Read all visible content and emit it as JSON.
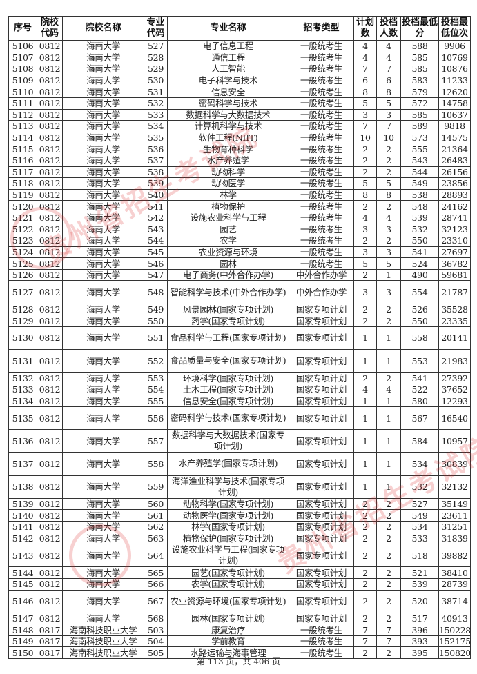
{
  "table": {
    "headers": [
      "序号",
      "院校代码",
      "院校名称",
      "专业代码",
      "专业名称",
      "招考类型",
      "计划数",
      "投档人数",
      "投档最低分",
      "投档最低位次"
    ],
    "rows": [
      [
        "5106",
        "0812",
        "海南大学",
        "527",
        "电子信息工程",
        "一般统考生",
        "4",
        "4",
        "588",
        "9906"
      ],
      [
        "5107",
        "0812",
        "海南大学",
        "528",
        "通信工程",
        "一般统考生",
        "4",
        "4",
        "585",
        "10769"
      ],
      [
        "5108",
        "0812",
        "海南大学",
        "529",
        "人工智能",
        "一般统考生",
        "7",
        "7",
        "585",
        "10876"
      ],
      [
        "5109",
        "0812",
        "海南大学",
        "530",
        "电子科学与技术",
        "一般统考生",
        "6",
        "6",
        "583",
        "11233"
      ],
      [
        "5110",
        "0812",
        "海南大学",
        "531",
        "信息安全",
        "一般统考生",
        "8",
        "8",
        "579",
        "12620"
      ],
      [
        "5111",
        "0812",
        "海南大学",
        "532",
        "密码科学与技术",
        "一般统考生",
        "5",
        "5",
        "572",
        "14758"
      ],
      [
        "5112",
        "0812",
        "海南大学",
        "533",
        "数据科学与大数据技术",
        "一般统考生",
        "3",
        "3",
        "585",
        "10637"
      ],
      [
        "5113",
        "0812",
        "海南大学",
        "534",
        "计算机科学与技术",
        "一般统考生",
        "7",
        "7",
        "589",
        "9818"
      ],
      [
        "5114",
        "0812",
        "海南大学",
        "535",
        "软件工程(NIIT)",
        "一般统考生",
        "10",
        "10",
        "573",
        "14575"
      ],
      [
        "5115",
        "0812",
        "海南大学",
        "536",
        "生物育种科学",
        "一般统考生",
        "2",
        "2",
        "555",
        "21364"
      ],
      [
        "5116",
        "0812",
        "海南大学",
        "537",
        "水产养殖学",
        "一般统考生",
        "2",
        "2",
        "543",
        "26483"
      ],
      [
        "5117",
        "0812",
        "海南大学",
        "538",
        "动物科学",
        "一般统考生",
        "2",
        "2",
        "544",
        "26156"
      ],
      [
        "5118",
        "0812",
        "海南大学",
        "539",
        "动物医学",
        "一般统考生",
        "5",
        "5",
        "549",
        "23856"
      ],
      [
        "5119",
        "0812",
        "海南大学",
        "540",
        "林学",
        "一般统考生",
        "8",
        "8",
        "538",
        "28893"
      ],
      [
        "5120",
        "0812",
        "海南大学",
        "541",
        "植物保护",
        "一般统考生",
        "2",
        "2",
        "548",
        "24162"
      ],
      [
        "5121",
        "0812",
        "海南大学",
        "542",
        "设施农业科学与工程",
        "一般统考生",
        "4",
        "4",
        "539",
        "28741"
      ],
      [
        "5122",
        "0812",
        "海南大学",
        "543",
        "园艺",
        "一般统考生",
        "3",
        "3",
        "532",
        "32123"
      ],
      [
        "5123",
        "0812",
        "海南大学",
        "544",
        "农学",
        "一般统考生",
        "2",
        "2",
        "550",
        "23310"
      ],
      [
        "5124",
        "0812",
        "海南大学",
        "545",
        "农业资源与环境",
        "一般统考生",
        "3",
        "3",
        "541",
        "27697"
      ],
      [
        "5125",
        "0812",
        "海南大学",
        "546",
        "园林",
        "一般统考生",
        "5",
        "5",
        "524",
        "36782"
      ],
      [
        "5126",
        "0812",
        "海南大学",
        "547",
        "电子商务(中外合作办学)",
        "中外合作办学",
        "2",
        "1",
        "490",
        "59681"
      ],
      [
        "5127",
        "0812",
        "海南大学",
        "548",
        "智能科学与技术(中外合作办学)",
        "中外合作办学",
        "3",
        "3",
        "554",
        "21787"
      ],
      [
        "5128",
        "0812",
        "海南大学",
        "549",
        "风景园林(国家专项计划)",
        "国家专项计划",
        "2",
        "2",
        "526",
        "35528"
      ],
      [
        "5129",
        "0812",
        "海南大学",
        "550",
        "药学(国家专项计划)",
        "国家专项计划",
        "2",
        "2",
        "550",
        "23335"
      ],
      [
        "5130",
        "0812",
        "海南大学",
        "551",
        "食品科学与工程(国家专项计划)",
        "国家专项计划",
        "1",
        "1",
        "558",
        "20141"
      ],
      [
        "5131",
        "0812",
        "海南大学",
        "552",
        "食品质量与安全(国家专项计划)",
        "国家专项计划",
        "1",
        "1",
        "553",
        "21983"
      ],
      [
        "5132",
        "0812",
        "海南大学",
        "553",
        "环境科学(国家专项计划)",
        "国家专项计划",
        "2",
        "2",
        "541",
        "27392"
      ],
      [
        "5133",
        "0812",
        "海南大学",
        "554",
        "土木工程(国家专项计划)",
        "国家专项计划",
        "4",
        "4",
        "522",
        "37652"
      ],
      [
        "5134",
        "0812",
        "海南大学",
        "555",
        "信息安全(国家专项计划)",
        "国家专项计划",
        "1",
        "1",
        "580",
        "12293"
      ],
      [
        "5135",
        "0812",
        "海南大学",
        "556",
        "密码科学与技术(国家专项计划)",
        "国家专项计划",
        "1",
        "1",
        "567",
        "16540"
      ],
      [
        "5136",
        "0812",
        "海南大学",
        "557",
        "数据科学与大数据技术(国家专项计划)",
        "国家专项计划",
        "1",
        "1",
        "584",
        "10957"
      ],
      [
        "5137",
        "0812",
        "海南大学",
        "558",
        "水产养殖学(国家专项计划)",
        "国家专项计划",
        "1",
        "1",
        "534",
        "30839"
      ],
      [
        "5138",
        "0812",
        "海南大学",
        "559",
        "海洋渔业科学与技术(国家专项计划)",
        "国家专项计划",
        "1",
        "1",
        "532",
        "32132"
      ],
      [
        "5139",
        "0812",
        "海南大学",
        "560",
        "动物科学(国家专项计划)",
        "国家专项计划",
        "2",
        "2",
        "527",
        "35149"
      ],
      [
        "5140",
        "0812",
        "海南大学",
        "561",
        "动物医学(国家专项计划)",
        "国家专项计划",
        "2",
        "2",
        "549",
        "23611"
      ],
      [
        "5141",
        "0812",
        "海南大学",
        "562",
        "林学(国家专项计划)",
        "国家专项计划",
        "2",
        "2",
        "534",
        "31251"
      ],
      [
        "5142",
        "0812",
        "海南大学",
        "563",
        "植物保护(国家专项计划)",
        "国家专项计划",
        "2",
        "2",
        "533",
        "31839"
      ],
      [
        "5143",
        "0812",
        "海南大学",
        "564",
        "设施农业科学与工程(国家专项计划)",
        "国家专项计划",
        "2",
        "2",
        "518",
        "39882"
      ],
      [
        "5144",
        "0812",
        "海南大学",
        "565",
        "园艺(国家专项计划)",
        "国家专项计划",
        "2",
        "2",
        "521",
        "38410"
      ],
      [
        "5145",
        "0812",
        "海南大学",
        "566",
        "农学(国家专项计划)",
        "国家专项计划",
        "2",
        "2",
        "539",
        "28739"
      ],
      [
        "5146",
        "0812",
        "海南大学",
        "567",
        "农业资源与环境(国家专项计划)",
        "国家专项计划",
        "2",
        "2",
        "520",
        "38714"
      ],
      [
        "5147",
        "0812",
        "海南大学",
        "568",
        "园林(国家专项计划)",
        "国家专项计划",
        "2",
        "2",
        "517",
        "40913"
      ],
      [
        "5148",
        "0817",
        "海南科技职业大学",
        "503",
        "康复治疗",
        "一般统考生",
        "7",
        "7",
        "396",
        "150228"
      ],
      [
        "5149",
        "0817",
        "海南科技职业大学",
        "504",
        "学前教育",
        "一般统考生",
        "7",
        "7",
        "393",
        "152175"
      ],
      [
        "5150",
        "0817",
        "海南科技职业大学",
        "505",
        "水路运输与海事管理",
        "一般统考生",
        "2",
        "2",
        "395",
        "150820"
      ]
    ]
  },
  "footer": "第 113 页，共 406 页",
  "watermark": "贵州省招生考试院",
  "watermark_color": "#dc2828"
}
